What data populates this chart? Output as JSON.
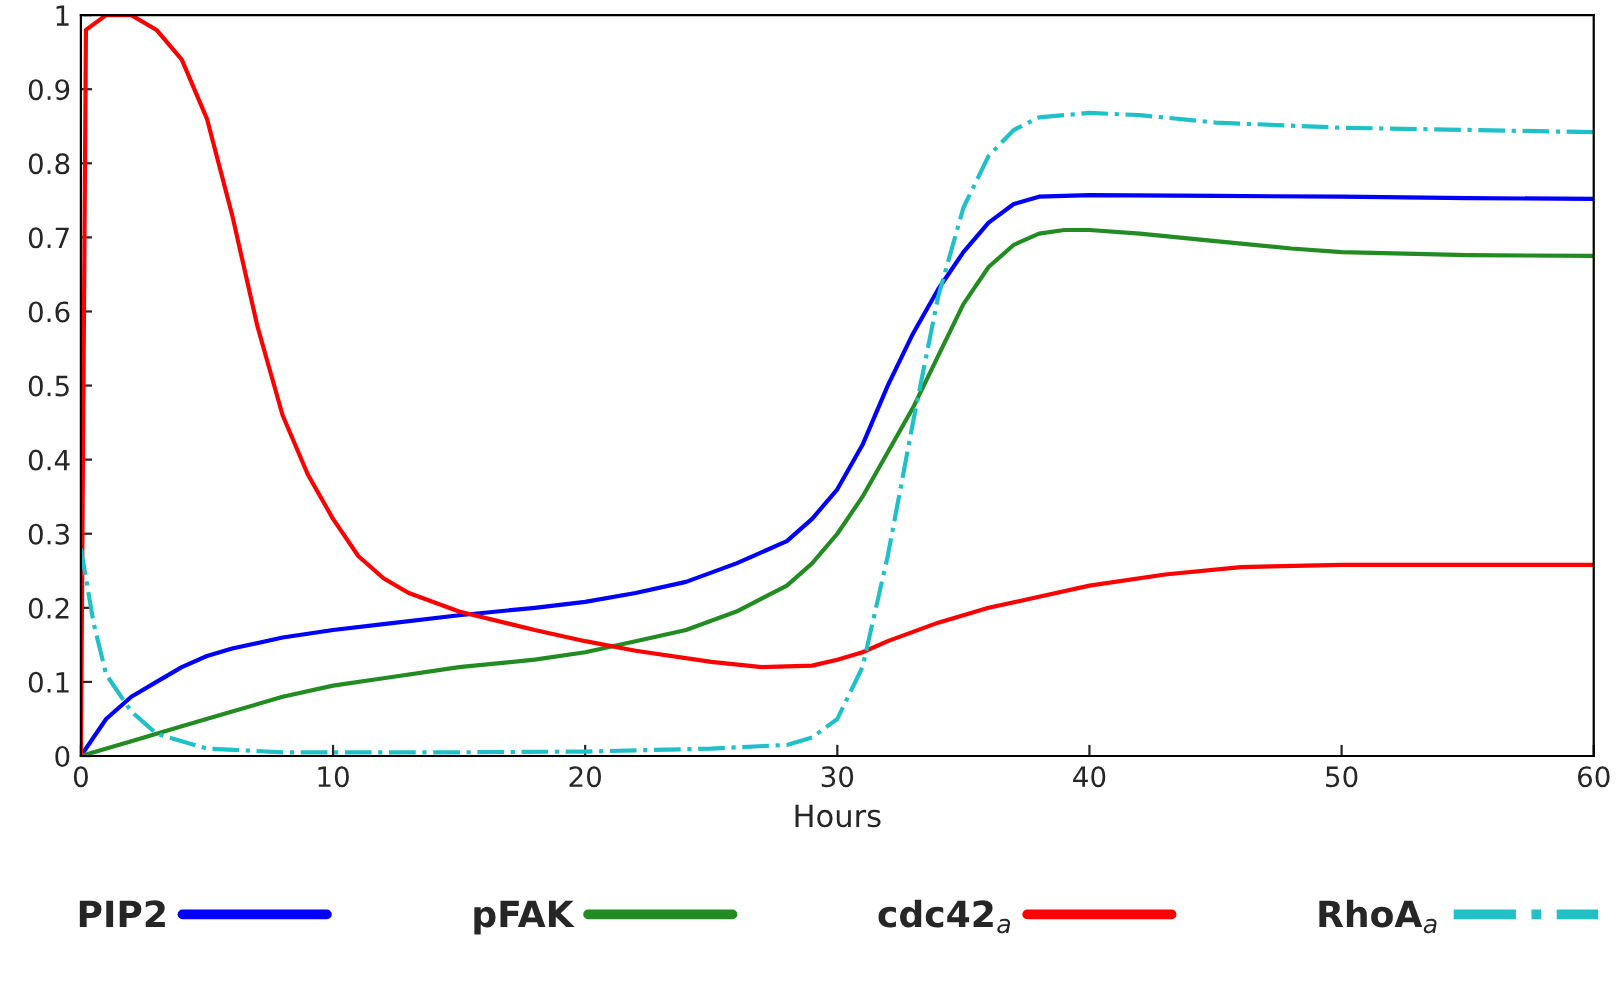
{
  "chart_data": {
    "type": "line",
    "xlabel": "Hours",
    "xlim": [
      0,
      60
    ],
    "xticks": [
      0,
      10,
      20,
      30,
      40,
      50,
      60
    ],
    "ylim": [
      0,
      1
    ],
    "yticks": [
      0,
      0.1,
      0.2,
      0.3,
      0.4,
      0.5,
      0.6,
      0.7,
      0.8,
      0.9,
      1
    ],
    "grid": false,
    "legend": "bottom",
    "series": [
      {
        "name": "PIP2",
        "color": "#0000ff",
        "line_style": "solid",
        "x": [
          0,
          1,
          2,
          3,
          4,
          5,
          6,
          8,
          10,
          12,
          15,
          18,
          20,
          22,
          24,
          26,
          28,
          29,
          30,
          31,
          32,
          33,
          34,
          35,
          36,
          37,
          38,
          40,
          45,
          50,
          55,
          60
        ],
        "values": [
          0.0,
          0.05,
          0.08,
          0.1,
          0.12,
          0.135,
          0.145,
          0.16,
          0.17,
          0.178,
          0.19,
          0.2,
          0.208,
          0.22,
          0.235,
          0.26,
          0.29,
          0.32,
          0.36,
          0.42,
          0.5,
          0.57,
          0.63,
          0.68,
          0.72,
          0.745,
          0.755,
          0.757,
          0.756,
          0.755,
          0.753,
          0.752
        ]
      },
      {
        "name": "pFAK",
        "color": "#228b22",
        "line_style": "solid",
        "x": [
          0,
          2,
          4,
          6,
          8,
          10,
          12,
          15,
          18,
          20,
          22,
          24,
          26,
          28,
          29,
          30,
          31,
          32,
          33,
          34,
          35,
          36,
          37,
          38,
          39,
          40,
          42,
          45,
          48,
          50,
          55,
          60
        ],
        "values": [
          0.0,
          0.02,
          0.04,
          0.06,
          0.08,
          0.095,
          0.105,
          0.12,
          0.13,
          0.14,
          0.155,
          0.17,
          0.195,
          0.23,
          0.26,
          0.3,
          0.35,
          0.41,
          0.47,
          0.54,
          0.61,
          0.66,
          0.69,
          0.705,
          0.71,
          0.71,
          0.705,
          0.695,
          0.685,
          0.68,
          0.676,
          0.675
        ]
      },
      {
        "name": "cdc42$_{a}$",
        "color": "#ff0000",
        "line_style": "solid",
        "x": [
          0,
          0.2,
          1,
          2,
          3,
          4,
          5,
          6,
          7,
          8,
          9,
          10,
          11,
          12,
          13,
          15,
          18,
          20,
          22,
          25,
          27,
          29,
          30,
          31,
          32,
          34,
          36,
          38,
          40,
          43,
          46,
          50,
          60
        ],
        "values": [
          0.0,
          0.98,
          1.0,
          1.0,
          0.98,
          0.94,
          0.86,
          0.73,
          0.58,
          0.46,
          0.38,
          0.32,
          0.27,
          0.24,
          0.22,
          0.195,
          0.17,
          0.155,
          0.142,
          0.127,
          0.12,
          0.122,
          0.13,
          0.14,
          0.155,
          0.18,
          0.2,
          0.215,
          0.23,
          0.245,
          0.255,
          0.258,
          0.258
        ]
      },
      {
        "name": "RhoA$_{a}$",
        "color": "#20c0c8",
        "line_style": "dashdot",
        "x": [
          0,
          0.5,
          1,
          2,
          3,
          5,
          8,
          15,
          20,
          25,
          28,
          29,
          30,
          31,
          32,
          33,
          34,
          35,
          36,
          37,
          38,
          40,
          42,
          45,
          50,
          55,
          60
        ],
        "values": [
          0.28,
          0.18,
          0.11,
          0.06,
          0.03,
          0.01,
          0.005,
          0.005,
          0.006,
          0.01,
          0.015,
          0.025,
          0.05,
          0.12,
          0.27,
          0.45,
          0.62,
          0.74,
          0.81,
          0.845,
          0.862,
          0.868,
          0.865,
          0.855,
          0.848,
          0.845,
          0.842
        ]
      }
    ]
  }
}
